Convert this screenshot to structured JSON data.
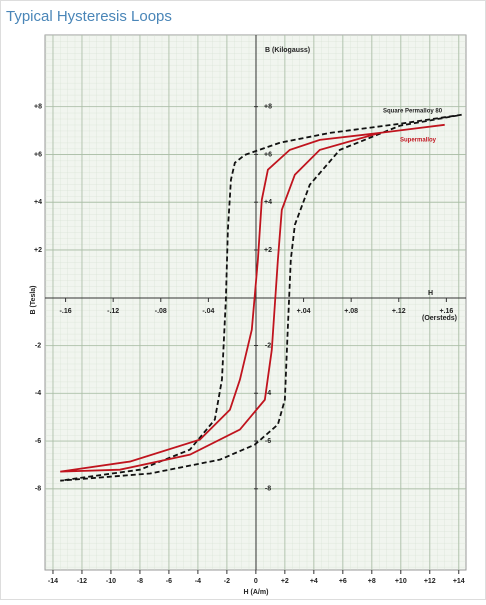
{
  "chart_data": {
    "type": "line",
    "title": "Typical Hysteresis Loops",
    "y_label_inner": "B   (Kilogauss)",
    "y_label": "B (Tesla)",
    "x_label_inner_letter": "H",
    "x_label_inner_unit": "(Oersteds)",
    "x_label": "H (A/m)",
    "xlim": [
      -14.55,
      14.5
    ],
    "xticks": [
      -14,
      -12,
      -10,
      -8,
      -6,
      -4,
      -2,
      0,
      {
        "value": 2,
        "label": "+2"
      },
      {
        "value": 4,
        "label": "+4"
      },
      {
        "value": 6,
        "label": "+6"
      },
      {
        "value": 8,
        "label": "+8"
      },
      {
        "value": 10,
        "label": "+10"
      },
      {
        "value": 12,
        "label": "+12"
      },
      {
        "value": 14,
        "label": "+14"
      }
    ],
    "x2lim": [
      -0.1773,
      0.1765
    ],
    "x2ticks": [
      {
        "value": -0.16,
        "label": "-.16"
      },
      {
        "value": -0.12,
        "label": "-.12"
      },
      {
        "value": -0.08,
        "label": "-.08"
      },
      {
        "value": -0.04,
        "label": "-.04"
      },
      {
        "value": 0.04,
        "label": "+.04"
      },
      {
        "value": 0.08,
        "label": "+.08"
      },
      {
        "value": 0.12,
        "label": "+.12"
      },
      {
        "value": 0.16,
        "label": "+.16"
      }
    ],
    "ylim": [
      -11.4,
      11
    ],
    "yticks": [
      {
        "value": 8,
        "label": "+8"
      },
      {
        "value": 6,
        "label": "+6"
      },
      {
        "value": 4,
        "label": "+4"
      },
      {
        "value": 2,
        "label": "+2"
      },
      -2,
      -4,
      -6,
      -8
    ],
    "y2lim": [
      -11.4,
      11
    ],
    "y2ticks": [
      {
        "value": 8,
        "label": "+8"
      },
      {
        "value": 6,
        "label": "+6"
      },
      {
        "value": 4,
        "label": "+4"
      },
      {
        "value": 2,
        "label": "+2"
      },
      -2,
      -4,
      -6,
      -8
    ],
    "grid": true,
    "series": [
      {
        "name": "Square Permalloy 80",
        "color": "#111111",
        "dash": true,
        "x": [
          14.2,
          9.9,
          5.1,
          1.66,
          -0.76,
          -1.45,
          -1.72,
          -1.93,
          -2.07,
          -2.34,
          -2.83,
          -4.55,
          -8,
          -13.5,
          -7.3,
          -2.48,
          -0.07,
          1.52,
          2,
          2.2,
          2.41,
          2.69,
          3.72,
          5.79,
          9.93,
          14.2
        ],
        "values": [
          7.66,
          7.28,
          6.9,
          6.49,
          5.98,
          5.65,
          4.94,
          2.85,
          -0.08,
          -3.43,
          -5.1,
          -6.36,
          -7.2,
          -7.66,
          -7.36,
          -6.78,
          -6.15,
          -5.31,
          -4.27,
          -1.34,
          1.59,
          3.05,
          4.73,
          6.19,
          7.2,
          7.66
        ]
      },
      {
        "name": "Supermalloy",
        "color": "#c0141e",
        "dash": false,
        "x": [
          13.03,
          8.55,
          4.41,
          2.34,
          0.83,
          0.41,
          0.14,
          -0.28,
          -1.1,
          -1.79,
          -3.86,
          -8.69,
          -13.5,
          -9.38,
          -4.55,
          -1.1,
          0.62,
          1.1,
          1.52,
          1.79,
          2.69,
          4.41,
          8.55,
          13.03
        ],
        "values": [
          7.24,
          6.9,
          6.61,
          6.19,
          5.36,
          4.1,
          1.59,
          -1.34,
          -3.43,
          -4.69,
          -5.94,
          -6.86,
          -7.28,
          -7.2,
          -6.57,
          -5.52,
          -4.27,
          -2.18,
          1.59,
          3.68,
          5.15,
          6.19,
          6.9,
          7.24
        ]
      }
    ]
  }
}
